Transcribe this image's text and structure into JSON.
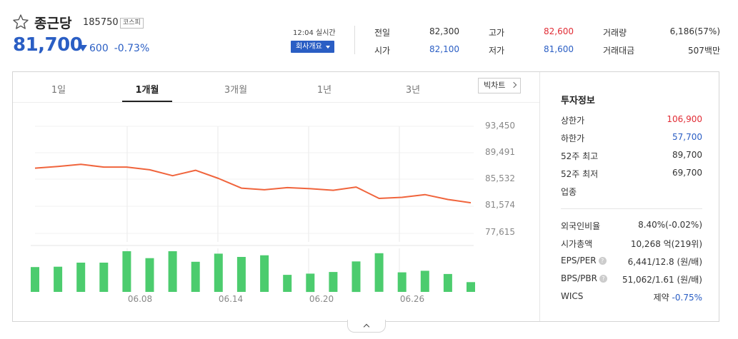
{
  "stock": {
    "name": "종근당",
    "code": "185750",
    "market": "코스피",
    "price": "81,700",
    "change": "600",
    "change_pct": "-0.73%",
    "realtime": "12:04 실시간",
    "company_btn": "회사개요"
  },
  "quote": {
    "prev_label": "전일",
    "prev": "82,300",
    "open_label": "시가",
    "open": "82,100",
    "high_label": "고가",
    "high": "82,600",
    "low_label": "저가",
    "low": "81,600",
    "vol_label": "거래량",
    "vol": "6,186(57%)",
    "amt_label": "거래대금",
    "amt": "507백만"
  },
  "colors": {
    "up": "#e12c35",
    "down": "#2a5ec4",
    "line": "#f0643c",
    "bar": "#4ccc6e"
  },
  "tabs": [
    "1일",
    "1개월",
    "3개월",
    "1년",
    "3년"
  ],
  "active_tab": "1개월",
  "big_chart_btn": "빅차트",
  "chart_data": {
    "type": "line",
    "title": "",
    "yticks": [
      "93,450",
      "89,491",
      "85,532",
      "81,574",
      "77,615"
    ],
    "ylim": [
      75636,
      95430
    ],
    "xticks": [
      "06.08",
      "06.14",
      "06.20",
      "06.26"
    ],
    "x": [
      "06.02",
      "06.03",
      "06.06",
      "06.07",
      "06.08",
      "06.09",
      "06.10",
      "06.13",
      "06.14",
      "06.15",
      "06.16",
      "06.17",
      "06.20",
      "06.21",
      "06.22",
      "06.23",
      "06.24",
      "06.27",
      "06.28",
      "06.29"
    ],
    "series": [
      {
        "values": [
          87700,
          88000,
          88400,
          87900,
          87900,
          87400,
          86300,
          87300,
          85800,
          84000,
          83700,
          84100,
          83900,
          83600,
          84200,
          82100,
          82300,
          82800,
          81900,
          81300
        ]
      }
    ],
    "volume_values": [
      0.61,
      0.62,
      0.72,
      0.72,
      1.0,
      0.83,
      1.0,
      0.74,
      0.94,
      0.86,
      0.9,
      0.42,
      0.45,
      0.49,
      0.75,
      0.95,
      0.48,
      0.52,
      0.44,
      0.24
    ]
  },
  "invest": {
    "title": "투자정보",
    "upper_limit_label": "상한가",
    "upper_limit": "106,900",
    "lower_limit_label": "하한가",
    "lower_limit": "57,700",
    "high52_label": "52주 최고",
    "high52": "89,700",
    "low52_label": "52주 최저",
    "low52": "69,700",
    "sector_label": "업종",
    "foreign_label": "외국인비율",
    "foreign": "8.40%(-0.02%)",
    "mcap_label": "시가총액",
    "mcap": "10,268 억(219위)",
    "eps_label": "EPS/PER",
    "eps": "6,441/12.8 (원/배)",
    "bps_label": "BPS/PBR",
    "bps": "51,062/1.61 (원/배)",
    "wics_label": "WICS",
    "wics_name": "제약",
    "wics_pct": "-0.75%"
  }
}
